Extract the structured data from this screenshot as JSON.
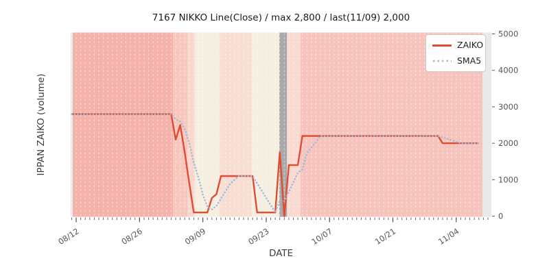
{
  "title": "7167 NIKKO Line(Close) / max 2,800 / last(11/09) 2,000",
  "axes": {
    "x_label": "DATE",
    "y_label": "IPPAN ZAIKO (volume)",
    "x_tick_labels": [
      "08/12",
      "08/26",
      "09/09",
      "09/23",
      "10/07",
      "10/21",
      "11/04"
    ],
    "x_tick_days": [
      1,
      15,
      29,
      43,
      57,
      71,
      85
    ],
    "y_ticks": [
      0,
      1000,
      2000,
      3000,
      4000,
      5000
    ]
  },
  "legend": {
    "position": "upper right",
    "items": [
      {
        "label": "ZAIKO",
        "style": "solid",
        "color": "#e14b31"
      },
      {
        "label": "SMA5",
        "style": "dotted",
        "color": "#9fbbd8"
      }
    ]
  },
  "colors": {
    "figure_bg": "#ffffff",
    "plot_bg": "#e9e9e9",
    "grid": "#ffffff",
    "zaiko_line": "#e14b31",
    "sma5_line": "#9fbbd8",
    "tick_mark": "#555555",
    "tick_text": "#555555",
    "axis_label_text": "#3c3c3c",
    "title_text": "#1a1a1a",
    "legend_border": "#cccccc",
    "highlight_band": "#a9a9a9"
  },
  "chart_data": {
    "type": "line",
    "title": "7167 NIKKO Line(Close) / max 2,800 / last(11/09) 2,000",
    "xlabel": "DATE",
    "ylabel": "IPPAN ZAIKO (volume)",
    "ylim": [
      0,
      5000
    ],
    "x_start_date": "08/11",
    "x_end_date": "11/09",
    "max_value": 2800,
    "last_date": "11/09",
    "last_value": 2000,
    "grid": "vertical white dashed line per day",
    "dates": [
      "08/11",
      "08/12",
      "08/13",
      "08/14",
      "08/15",
      "08/16",
      "08/17",
      "08/18",
      "08/19",
      "08/20",
      "08/21",
      "08/22",
      "08/23",
      "08/24",
      "08/25",
      "08/26",
      "08/27",
      "08/28",
      "08/29",
      "08/30",
      "08/31",
      "09/01",
      "09/02",
      "09/03",
      "09/04",
      "09/05",
      "09/06",
      "09/07",
      "09/08",
      "09/09",
      "09/10",
      "09/11",
      "09/12",
      "09/13",
      "09/14",
      "09/15",
      "09/16",
      "09/17",
      "09/18",
      "09/19",
      "09/20",
      "09/21",
      "09/22",
      "09/23",
      "09/24",
      "09/25",
      "09/26",
      "09/27",
      "09/28",
      "09/29",
      "09/30",
      "10/01",
      "10/02",
      "10/03",
      "10/04",
      "10/05",
      "10/06",
      "10/07",
      "10/08",
      "10/09",
      "10/10",
      "10/11",
      "10/12",
      "10/13",
      "10/14",
      "10/15",
      "10/16",
      "10/17",
      "10/18",
      "10/19",
      "10/20",
      "10/21",
      "10/22",
      "10/23",
      "10/24",
      "10/25",
      "10/26",
      "10/27",
      "10/28",
      "10/29",
      "10/30",
      "10/31",
      "11/01",
      "11/02",
      "11/03",
      "11/04",
      "11/05",
      "11/06",
      "11/07",
      "11/08",
      "11/09"
    ],
    "series": [
      {
        "name": "ZAIKO",
        "values": [
          2800,
          2800,
          2800,
          2800,
          2800,
          2800,
          2800,
          2800,
          2800,
          2800,
          2800,
          2800,
          2800,
          2800,
          2800,
          2800,
          2800,
          2800,
          2800,
          2800,
          2800,
          2800,
          2800,
          2100,
          2500,
          1750,
          900,
          100,
          100,
          100,
          100,
          500,
          600,
          1100,
          1100,
          1100,
          1100,
          1100,
          1100,
          1100,
          1100,
          100,
          100,
          100,
          100,
          100,
          1750,
          0,
          1400,
          1400,
          1400,
          2200,
          2200,
          2200,
          2200,
          2200,
          2200,
          2200,
          2200,
          2200,
          2200,
          2200,
          2200,
          2200,
          2200,
          2200,
          2200,
          2200,
          2200,
          2200,
          2200,
          2200,
          2200,
          2200,
          2200,
          2200,
          2200,
          2200,
          2200,
          2200,
          2200,
          2200,
          2000,
          2000,
          2000,
          2000,
          2000,
          2000,
          2000,
          2000,
          2000
        ]
      },
      {
        "name": "SMA5",
        "derived": "5-day trailing moving average of ZAIKO (min window 1)"
      }
    ],
    "bands": [
      {
        "from_day": 0.25,
        "to_day": 22.4,
        "color": "#f4b2aa"
      },
      {
        "from_day": 22.4,
        "to_day": 25.6,
        "color": "#f7c6bd"
      },
      {
        "from_day": 25.6,
        "to_day": 27.2,
        "color": "#fad6cc"
      },
      {
        "from_day": 27.2,
        "to_day": 32.7,
        "color": "#f5eee1"
      },
      {
        "from_day": 32.7,
        "to_day": 39.8,
        "color": "#f8ddd3"
      },
      {
        "from_day": 39.8,
        "to_day": 45.9,
        "color": "#f5eee1"
      },
      {
        "from_day": 45.9,
        "to_day": 47.6,
        "color": "#a9a9a9"
      },
      {
        "from_day": 47.6,
        "to_day": 50.6,
        "color": "#fad9d0"
      },
      {
        "from_day": 50.6,
        "to_day": 90.8,
        "color": "#f6c4bc"
      }
    ]
  }
}
